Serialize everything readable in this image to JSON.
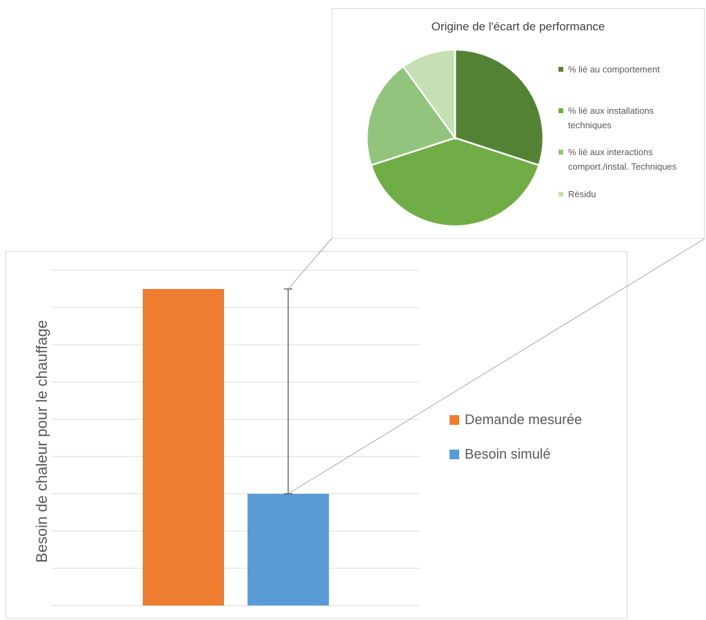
{
  "chart_data": [
    {
      "type": "pie",
      "title": "Origine de l'écart de performance",
      "categories": [
        "% lié au comportement",
        "% lié aux installations techniques",
        "% lié aux interactions comport./instal. Techniques",
        "Résidu"
      ],
      "values": [
        30,
        40,
        20,
        10
      ],
      "colors": [
        "#548235",
        "#70ad47",
        "#93c47d",
        "#c5e0b4"
      ],
      "legend_position": "right"
    },
    {
      "type": "bar",
      "title": "",
      "ylabel": "Besoin de chaleur pour le chauffage",
      "categories": [
        "Demande mesurée",
        "Besoin simulé"
      ],
      "values": [
        8.5,
        3
      ],
      "colors": [
        "#ed7d31",
        "#5b9bd5"
      ],
      "error_bar": {
        "series": "Besoin simulé",
        "low": 3,
        "high": 8.5
      },
      "ylim": [
        0,
        9
      ],
      "grid": true,
      "legend_position": "right"
    }
  ]
}
